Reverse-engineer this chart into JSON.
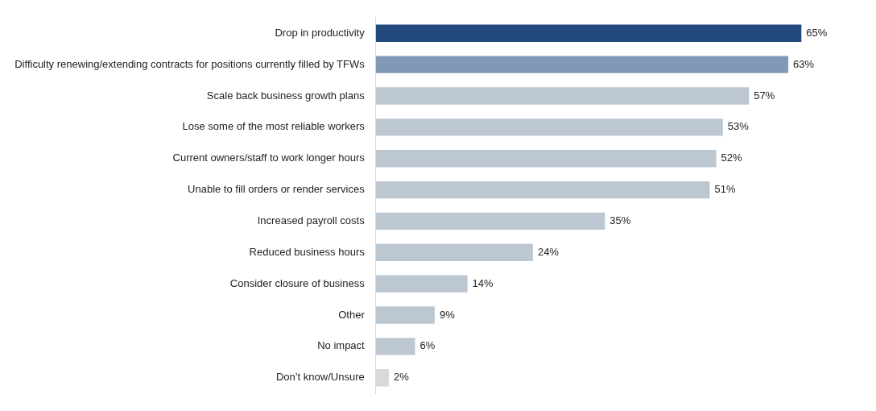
{
  "chart_data": {
    "type": "bar",
    "orientation": "horizontal",
    "categories": [
      "Drop in productivity",
      "Difficulty renewing/extending contracts for positions currently filled by TFWs",
      "Scale back business growth plans",
      "Lose some of the most reliable workers",
      "Current owners/staff to work longer hours",
      "Unable to fill orders or render services",
      "Increased payroll costs",
      "Reduced business hours",
      "Consider closure of business",
      "Other",
      "No impact",
      "Don’t know/Unsure"
    ],
    "values": [
      65,
      63,
      57,
      53,
      52,
      51,
      35,
      24,
      14,
      9,
      6,
      2
    ],
    "colors": [
      "#234a7c",
      "#8199b6",
      "#bdc7d2",
      "#bdc7d2",
      "#bdc7d2",
      "#bdc7d2",
      "#bdc7d2",
      "#bdc7d2",
      "#bdc7d2",
      "#bdc7d2",
      "#bdc7d2",
      "#d9d9d9"
    ],
    "value_labels": [
      "65%",
      "63%",
      "57%",
      "53%",
      "52%",
      "51%",
      "35%",
      "24%",
      "14%",
      "9%",
      "6%",
      "2%"
    ],
    "tick_labels": "y",
    "grid": false,
    "legend": false
  }
}
